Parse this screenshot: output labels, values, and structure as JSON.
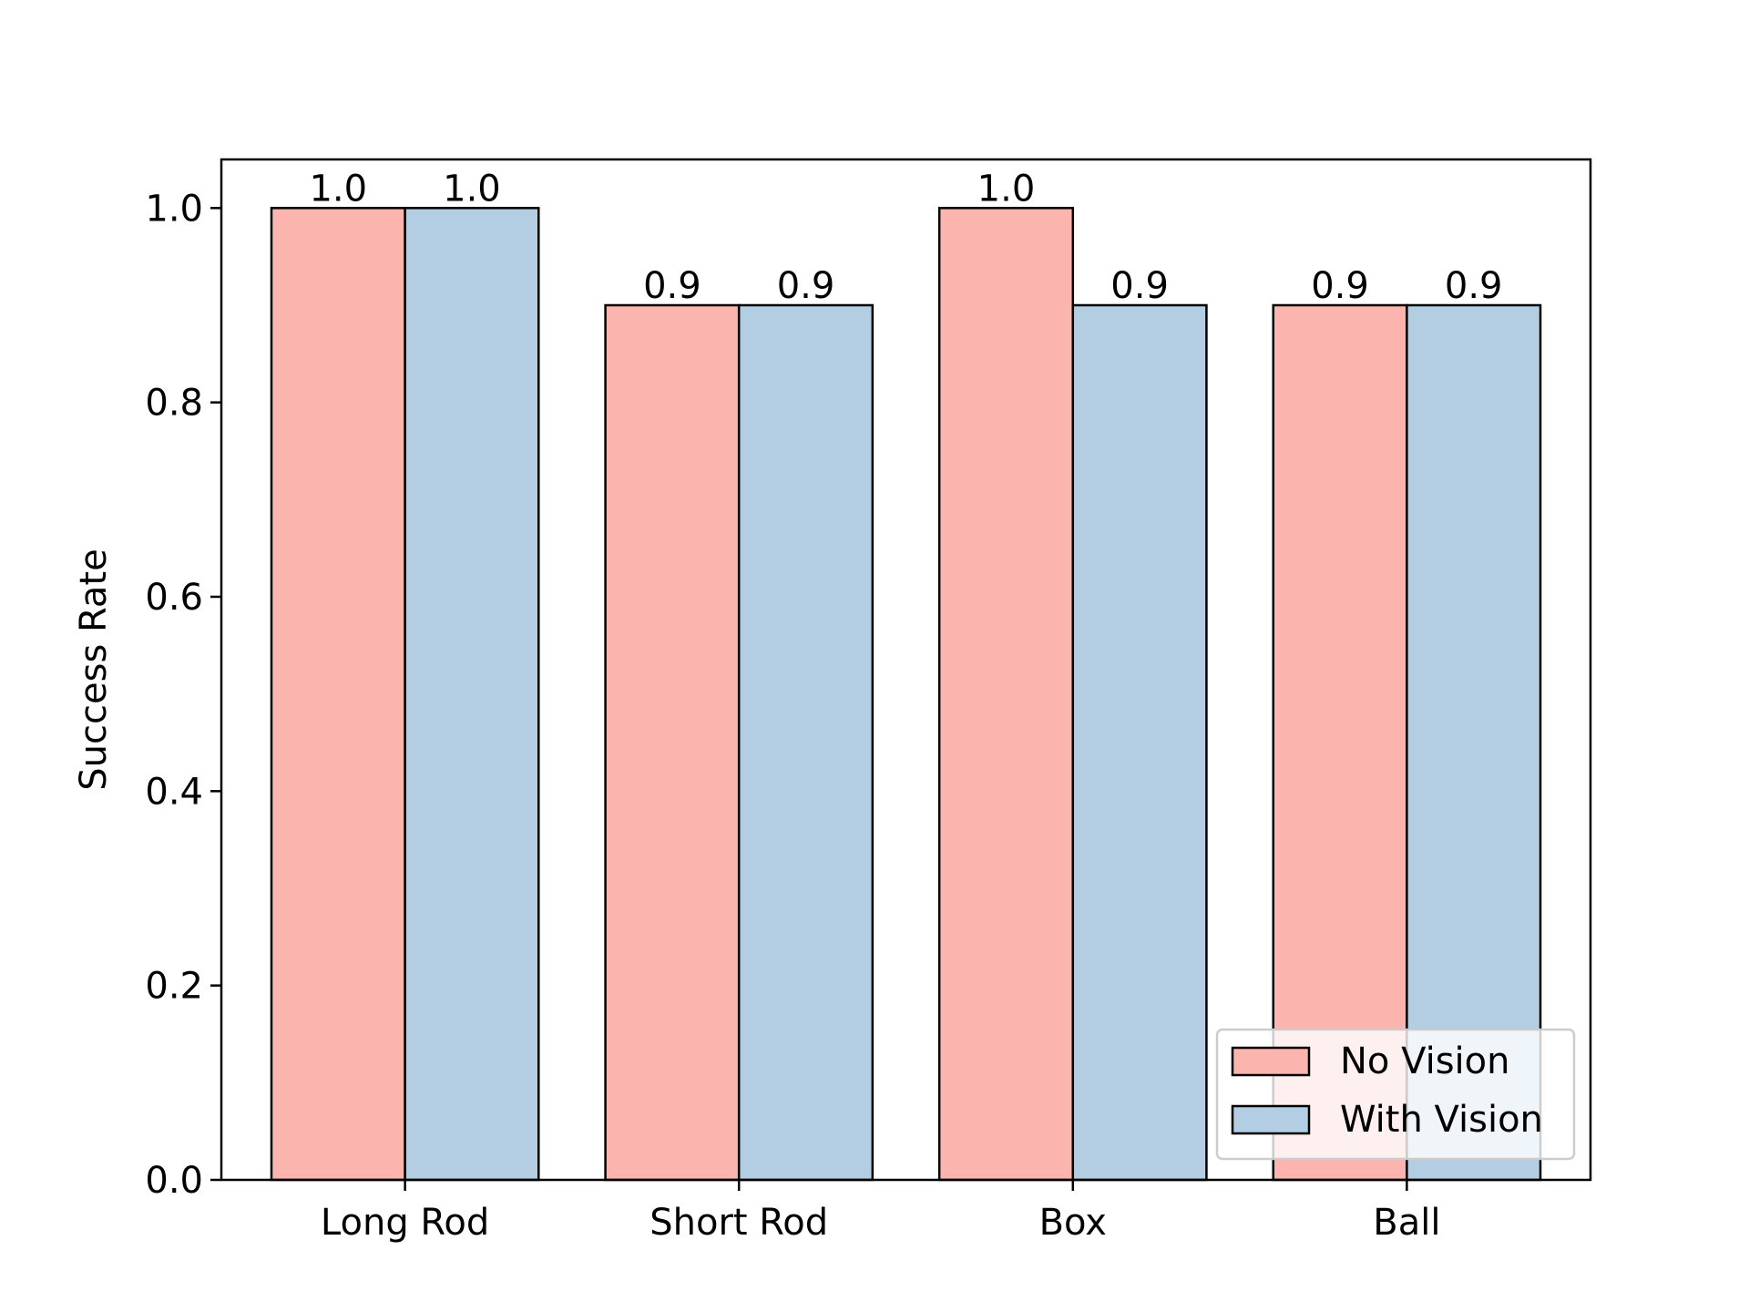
{
  "chart_data": {
    "type": "bar",
    "title": "",
    "xlabel": "",
    "ylabel": "Success Rate",
    "categories": [
      "Long Rod",
      "Short Rod",
      "Box",
      "Ball"
    ],
    "series": [
      {
        "name": "No Vision",
        "values": [
          1.0,
          0.9,
          1.0,
          0.9
        ],
        "color": "#fbb4ae"
      },
      {
        "name": "With Vision",
        "values": [
          1.0,
          0.9,
          0.9,
          0.9
        ],
        "color": "#b3cde3"
      }
    ],
    "ylim": [
      0,
      1.05
    ],
    "yticks": [
      "0.0",
      "0.2",
      "0.4",
      "0.6",
      "0.8",
      "1.0"
    ],
    "value_labels": true,
    "grid": false,
    "legend": {
      "placement": "lower-right"
    }
  }
}
